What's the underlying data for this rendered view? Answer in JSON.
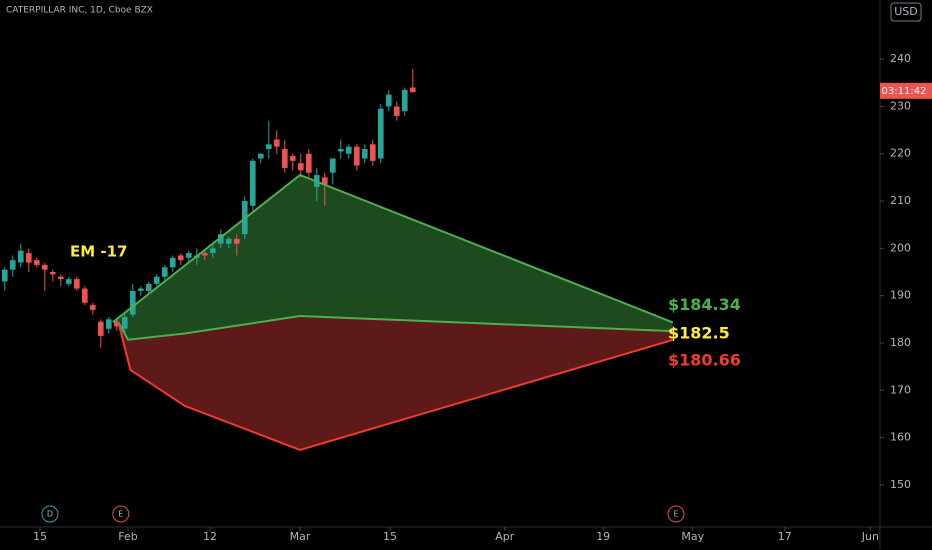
{
  "chart_data": {
    "type": "candlestick",
    "title": "CATERPILLAR INC, 1D, Cboe BZX",
    "currency": "USD",
    "countdown": "03:11:42",
    "countdown_value": 233.3,
    "annotation": "EM -17",
    "candles": {
      "x": [
        0,
        1,
        2,
        3,
        4,
        5,
        6,
        7,
        8,
        9,
        10,
        11,
        12,
        13,
        14,
        15,
        16,
        17,
        18,
        19,
        20,
        21,
        22,
        23,
        24,
        25,
        26,
        27,
        28,
        29,
        30,
        31,
        32,
        33,
        34,
        35,
        36,
        37,
        38,
        39,
        40,
        41,
        42,
        43,
        44,
        45,
        46,
        47,
        48,
        49,
        50,
        51
      ],
      "open": [
        193,
        195.5,
        197,
        199,
        197.5,
        196.5,
        195,
        194,
        192.5,
        193.5,
        191.5,
        188,
        184.5,
        183,
        184.5,
        183,
        186,
        191,
        191,
        192.5,
        194,
        196,
        198.5,
        198,
        198,
        199,
        199,
        201,
        201,
        202,
        203,
        209,
        219,
        221,
        223,
        221,
        219.5,
        218,
        220,
        213,
        215,
        216,
        220.5,
        220,
        221.5,
        219,
        222,
        219,
        230,
        230,
        229,
        234
      ],
      "high": [
        196,
        198.5,
        201,
        200,
        198,
        197,
        195.5,
        194.5,
        194,
        194,
        192,
        188.5,
        185,
        185.5,
        185,
        186,
        192.5,
        192,
        193,
        194.5,
        196.5,
        198.5,
        199,
        199.5,
        200,
        199.5,
        201,
        204,
        202.5,
        203,
        211,
        219,
        220,
        227,
        225,
        223,
        220,
        220,
        221,
        217,
        216,
        219,
        223,
        222,
        222,
        222,
        223,
        230.5,
        233.5,
        231,
        234,
        238
      ],
      "low": [
        191,
        194,
        196,
        195,
        196,
        191,
        193,
        192,
        192,
        191,
        188,
        186,
        179,
        182,
        182.5,
        182,
        185.5,
        190,
        190.5,
        192,
        193,
        195,
        196.5,
        197,
        196.5,
        197.5,
        198,
        200,
        200,
        198.5,
        202,
        208,
        218,
        219,
        220,
        216,
        216.5,
        215,
        215,
        210,
        209,
        213.5,
        219,
        219,
        216.5,
        218,
        217.5,
        218,
        229,
        227,
        228,
        233
      ],
      "close": [
        195.5,
        197.5,
        199.5,
        197,
        196.5,
        195.5,
        194.5,
        193.5,
        193.5,
        191.5,
        188.5,
        187,
        181.5,
        185,
        183.5,
        185.5,
        191,
        191.5,
        192.5,
        194,
        196,
        198,
        197.5,
        199,
        198.5,
        198.5,
        200,
        203,
        202,
        201,
        210,
        218.5,
        220,
        222,
        221.5,
        217,
        218.5,
        216.5,
        216,
        215.5,
        213.5,
        219,
        221,
        221.5,
        217.5,
        221,
        218.5,
        229.5,
        232.5,
        228,
        233.5,
        233
      ],
      "up_color": "#26a69a",
      "down_color": "#ef5350"
    },
    "upper": {
      "x": [
        13.5,
        36.9,
        83.5
      ],
      "values": [
        184.4,
        215.5,
        184.34
      ],
      "color": "#4caf50",
      "fill": "#1d4a1f"
    },
    "middle": {
      "x": [
        14.2,
        15.4,
        22.5,
        36.9,
        83.5
      ],
      "values": [
        184.4,
        180.7,
        182.0,
        185.7,
        182.5
      ]
    },
    "lower": {
      "x": [
        14.2,
        15.7,
        22.5,
        36.9,
        83.5
      ],
      "values": [
        184.4,
        174.3,
        166.7,
        157.4,
        180.66
      ],
      "color": "#f23b2e",
      "fill": "#5e1a19"
    },
    "end_labels": [
      {
        "text": "$184.34",
        "value": 184.34,
        "color": "#4caf50"
      },
      {
        "text": "$182.5",
        "value": 182.5,
        "color": "#ffeb3b"
      },
      {
        "text": "$180.66",
        "value": 180.66,
        "color": "#f23b2e"
      }
    ],
    "events": [
      {
        "text": "D",
        "x": 5.65,
        "color": "#2f9fb0"
      },
      {
        "text": "E",
        "x": 14.5,
        "color": "#e04a4a"
      },
      {
        "text": "E",
        "x": 83.9,
        "color": "#e04a4a"
      }
    ],
    "xlim": [
      -0.6,
      109.4
    ],
    "xticks": [
      {
        "value": 4.4,
        "label": "15"
      },
      {
        "value": 15.4,
        "label": "Feb"
      },
      {
        "value": 25.65,
        "label": "12"
      },
      {
        "value": 36.9,
        "label": "Mar"
      },
      {
        "value": 48.15,
        "label": "15"
      },
      {
        "value": 62.5,
        "label": "Apr"
      },
      {
        "value": 74.8,
        "label": "19"
      },
      {
        "value": 86.0,
        "label": "May"
      },
      {
        "value": 97.5,
        "label": "17"
      },
      {
        "value": 108.2,
        "label": "Jun"
      }
    ],
    "ylim": [
      141.1,
      252.5
    ],
    "yticks": [
      150,
      160,
      170,
      180,
      190,
      200,
      210,
      220,
      230,
      240
    ]
  }
}
